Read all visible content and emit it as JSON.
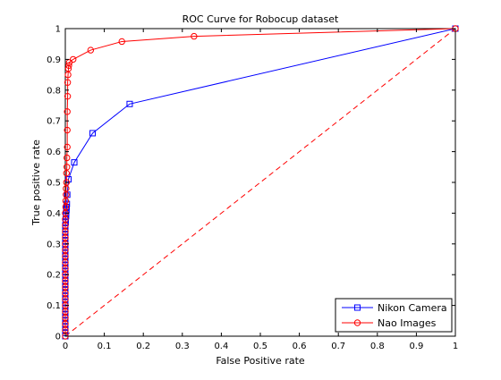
{
  "chart_data": {
    "type": "line",
    "title": "ROC Curve for Robocup dataset",
    "xlabel": "False Positive rate",
    "ylabel": "True positive rate",
    "xlim": [
      0,
      1
    ],
    "ylim": [
      0,
      1
    ],
    "xticks": [
      "0",
      "0.1",
      "0.2",
      "0.3",
      "0.4",
      "0.5",
      "0.6",
      "0.7",
      "0.8",
      "0.9",
      "1"
    ],
    "yticks": [
      "0",
      "0.1",
      "0.2",
      "0.3",
      "0.4",
      "0.5",
      "0.6",
      "0.7",
      "0.8",
      "0.9",
      "1"
    ],
    "grid": false,
    "legend_position": "bottom-right",
    "series": [
      {
        "name": "Nikon Camera",
        "color": "#0000ff",
        "marker": "square",
        "line": "solid",
        "x": [
          0,
          0,
          0,
          0,
          0,
          0,
          0,
          0,
          0,
          0,
          0,
          0,
          0,
          0,
          0,
          0,
          0,
          0,
          0,
          0,
          0,
          0,
          0,
          0,
          0,
          0,
          0,
          0,
          0,
          0,
          0,
          0,
          0,
          0,
          0,
          0,
          0,
          0.001,
          0.001,
          0.002,
          0.002,
          0.003,
          0.003,
          0.004,
          0.005,
          0.008,
          0.023,
          0.07,
          0.165,
          1.0
        ],
        "y": [
          0,
          0.01,
          0.02,
          0.03,
          0.04,
          0.05,
          0.06,
          0.07,
          0.08,
          0.09,
          0.1,
          0.11,
          0.12,
          0.13,
          0.14,
          0.15,
          0.16,
          0.17,
          0.18,
          0.19,
          0.2,
          0.21,
          0.22,
          0.23,
          0.24,
          0.25,
          0.26,
          0.27,
          0.28,
          0.29,
          0.3,
          0.31,
          0.32,
          0.33,
          0.34,
          0.35,
          0.36,
          0.37,
          0.38,
          0.39,
          0.4,
          0.41,
          0.42,
          0.43,
          0.46,
          0.51,
          0.565,
          0.66,
          0.755,
          1.0
        ]
      },
      {
        "name": "Nao Images",
        "color": "#ff0000",
        "marker": "circle",
        "line": "solid",
        "x": [
          0,
          0,
          0,
          0,
          0,
          0,
          0,
          0,
          0,
          0,
          0,
          0,
          0,
          0,
          0,
          0,
          0,
          0,
          0,
          0,
          0,
          0.001,
          0.001,
          0.002,
          0.002,
          0.003,
          0.003,
          0.004,
          0.004,
          0.005,
          0.005,
          0.005,
          0.006,
          0.006,
          0.007,
          0.008,
          0.009,
          0.01,
          0.02,
          0.065,
          0.145,
          0.33,
          1.0
        ],
        "y": [
          0,
          0.02,
          0.04,
          0.06,
          0.08,
          0.1,
          0.12,
          0.14,
          0.16,
          0.18,
          0.2,
          0.22,
          0.24,
          0.26,
          0.28,
          0.3,
          0.32,
          0.34,
          0.36,
          0.38,
          0.4,
          0.42,
          0.44,
          0.46,
          0.48,
          0.5,
          0.53,
          0.55,
          0.58,
          0.615,
          0.67,
          0.73,
          0.78,
          0.825,
          0.85,
          0.87,
          0.88,
          0.89,
          0.9,
          0.93,
          0.958,
          0.975,
          1.0
        ]
      },
      {
        "name": "",
        "color": "#ff0000",
        "marker": "none",
        "line": "dashed",
        "x": [
          0,
          1
        ],
        "y": [
          0,
          1
        ]
      }
    ]
  }
}
